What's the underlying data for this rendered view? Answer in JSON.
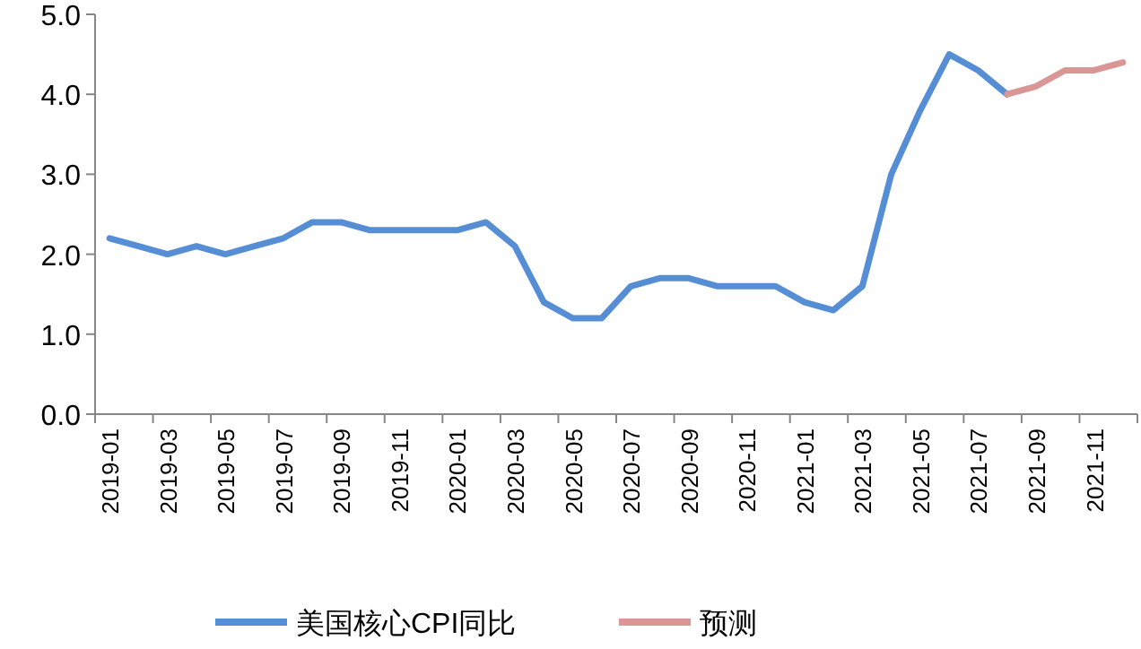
{
  "chart_data": {
    "type": "line",
    "categories": [
      "2019-01",
      null,
      "2019-03",
      null,
      "2019-05",
      null,
      "2019-07",
      null,
      "2019-09",
      null,
      "2019-11",
      null,
      "2020-01",
      null,
      "2020-03",
      null,
      "2020-05",
      null,
      "2020-07",
      null,
      "2020-09",
      null,
      "2020-11",
      null,
      "2021-01",
      null,
      "2021-03",
      null,
      "2021-05",
      null,
      "2021-07",
      null,
      "2021-09",
      null,
      "2021-11",
      null
    ],
    "series": [
      {
        "name": "美国核心CPI同比",
        "color": "#558ed5",
        "values": [
          2.2,
          2.1,
          2.0,
          2.1,
          2.0,
          2.1,
          2.2,
          2.4,
          2.4,
          2.3,
          2.3,
          2.3,
          2.3,
          2.4,
          2.1,
          1.4,
          1.2,
          1.2,
          1.6,
          1.7,
          1.7,
          1.6,
          1.6,
          1.6,
          1.4,
          1.3,
          1.6,
          3.0,
          3.8,
          4.5,
          4.3,
          4.0,
          null,
          null,
          null,
          null
        ]
      },
      {
        "name": "预测",
        "color": "#d99694",
        "values": [
          null,
          null,
          null,
          null,
          null,
          null,
          null,
          null,
          null,
          null,
          null,
          null,
          null,
          null,
          null,
          null,
          null,
          null,
          null,
          null,
          null,
          null,
          null,
          null,
          null,
          null,
          null,
          null,
          null,
          null,
          null,
          4.0,
          4.1,
          4.3,
          4.3,
          4.4
        ]
      }
    ],
    "ylim": [
      0,
      5
    ],
    "yticks": [
      {
        "value": 0,
        "label": "0.0"
      },
      {
        "value": 1,
        "label": "1.0"
      },
      {
        "value": 2,
        "label": "2.0"
      },
      {
        "value": 3,
        "label": "3.0"
      },
      {
        "value": 4,
        "label": "4.0"
      },
      {
        "value": 5,
        "label": "5.0"
      }
    ],
    "grid": false,
    "legend": "bottom",
    "marker": "none",
    "line_style": "solid"
  }
}
